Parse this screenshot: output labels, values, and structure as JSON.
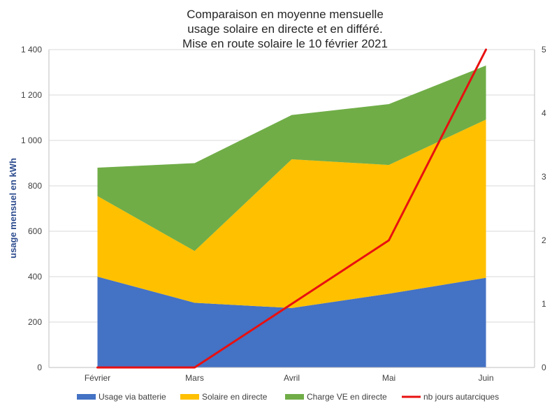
{
  "chart_data": {
    "type": "area",
    "title_lines": [
      "Comparaison en moyenne mensuelle",
      "usage solaire en directe et en différé.",
      "Mise en route solaire le 10 février 2021"
    ],
    "ylabel": "usage mensuel en kWh",
    "categories": [
      "Février",
      "Mars",
      "Avril",
      "Mai",
      "Juin"
    ],
    "ylim": [
      0,
      1400
    ],
    "y_ticks": [
      "0",
      "200",
      "400",
      "600",
      "800",
      "1 000",
      "1 200",
      "1 400"
    ],
    "y2lim": [
      0,
      5
    ],
    "y2_ticks": [
      "0",
      "1",
      "2",
      "3",
      "4",
      "5"
    ],
    "stacked": true,
    "series": [
      {
        "name": "Usage via batterie",
        "values": [
          400,
          285,
          262,
          325,
          395
        ],
        "color": "#4472C4",
        "kind": "area",
        "axis": "left"
      },
      {
        "name": "Solaire en directe",
        "values": [
          355,
          228,
          655,
          567,
          697
        ],
        "color": "#FFC000",
        "kind": "area",
        "axis": "left"
      },
      {
        "name": "Charge VE en directe",
        "values": [
          125,
          387,
          195,
          268,
          238
        ],
        "color": "#70AD47",
        "kind": "area",
        "axis": "left"
      },
      {
        "name": "nb jours autarciques",
        "values": [
          0,
          0,
          1,
          2,
          5
        ],
        "color": "#E81010",
        "kind": "line",
        "axis": "right"
      }
    ],
    "grid": "horizontal",
    "legend_position": "bottom"
  }
}
